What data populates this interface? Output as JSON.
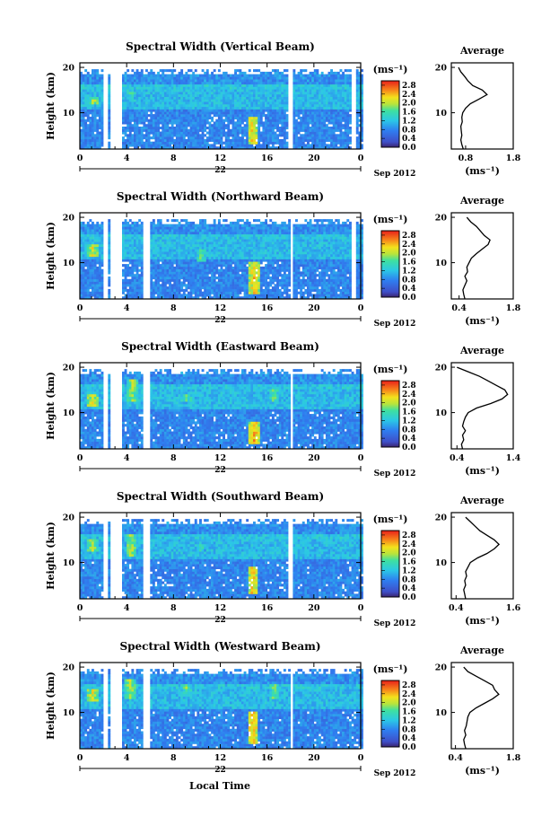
{
  "chart_data": [
    {
      "type": "heatmap",
      "title": "Spectral Width (Vertical Beam)",
      "ylabel": "Height (km)",
      "y_ticks": [
        "10",
        "20"
      ],
      "x_ticks": [
        "0",
        "4",
        "8",
        "12",
        "16",
        "20",
        "0"
      ],
      "xlim": [
        0,
        24
      ],
      "ylim": [
        2,
        21
      ],
      "date_day": "22",
      "date_month_year": "Sep 2012",
      "colorbar": {
        "unit_label": "(ms⁻¹)",
        "ticks": [
          "0.0",
          "0.4",
          "0.8",
          "1.2",
          "1.6",
          "2.0",
          "2.4",
          "2.8"
        ],
        "range": [
          0,
          3.0
        ]
      },
      "data_gaps_hours": [
        [
          1.8,
          2.2
        ],
        [
          2.6,
          3.1
        ],
        [
          3.2,
          3.6
        ],
        [
          17.6,
          18.1
        ],
        [
          23.0,
          23.4
        ]
      ],
      "features": [
        {
          "t": 14.7,
          "h": [
            3,
            9
          ],
          "w": 2.6
        },
        {
          "t": 1.1,
          "h": [
            11.5,
            13.5
          ],
          "w": 2.2
        },
        {
          "t": 4.3,
          "h": [
            12,
            15
          ],
          "w": 1.8
        }
      ],
      "average": {
        "title": "Average",
        "xlabel": "(ms⁻¹)",
        "x_ticks": [
          "0.8",
          "1.8"
        ],
        "xlim": [
          0.5,
          1.8
        ],
        "y_ticks": [
          "10",
          "20"
        ],
        "profile": [
          [
            2,
            0.75
          ],
          [
            3,
            0.72
          ],
          [
            4,
            0.7
          ],
          [
            5,
            0.72
          ],
          [
            6,
            0.71
          ],
          [
            7,
            0.7
          ],
          [
            8,
            0.73
          ],
          [
            9,
            0.72
          ],
          [
            10,
            0.74
          ],
          [
            11,
            0.8
          ],
          [
            12,
            0.9
          ],
          [
            13,
            1.08
          ],
          [
            14,
            1.25
          ],
          [
            15,
            1.15
          ],
          [
            16,
            0.95
          ],
          [
            17,
            0.85
          ],
          [
            18,
            0.78
          ],
          [
            19,
            0.7
          ],
          [
            20,
            0.65
          ]
        ]
      }
    },
    {
      "type": "heatmap",
      "title": "Spectral Width (Northward Beam)",
      "ylabel": "Height (km)",
      "y_ticks": [
        "10",
        "20"
      ],
      "x_ticks": [
        "0",
        "4",
        "8",
        "12",
        "16",
        "20",
        "0"
      ],
      "xlim": [
        0,
        24
      ],
      "ylim": [
        2,
        21
      ],
      "date_day": "22",
      "date_month_year": "Sep 2012",
      "colorbar": {
        "unit_label": "(ms⁻¹)",
        "ticks": [
          "0.0",
          "0.4",
          "0.8",
          "1.2",
          "1.6",
          "2.0",
          "2.4",
          "2.8"
        ],
        "range": [
          0,
          3.0
        ]
      },
      "data_gaps_hours": [
        [
          1.8,
          2.2
        ],
        [
          2.6,
          3.1
        ],
        [
          3.2,
          3.6
        ],
        [
          5.3,
          5.9
        ],
        [
          17.8,
          18.1
        ],
        [
          23.0,
          23.4
        ]
      ],
      "features": [
        {
          "t": 14.8,
          "h": [
            3,
            10
          ],
          "w": 2.6
        },
        {
          "t": 1.0,
          "h": [
            11,
            14
          ],
          "w": 2.4
        },
        {
          "t": 10.3,
          "h": [
            10,
            13
          ],
          "w": 2.0
        }
      ],
      "average": {
        "title": "Average",
        "xlabel": "(ms⁻¹)",
        "x_ticks": [
          "0.4",
          "1.8"
        ],
        "xlim": [
          0.2,
          1.8
        ],
        "y_ticks": [
          "10",
          "20"
        ],
        "profile": [
          [
            2,
            0.55
          ],
          [
            3,
            0.52
          ],
          [
            4,
            0.5
          ],
          [
            5,
            0.55
          ],
          [
            6,
            0.6
          ],
          [
            7,
            0.55
          ],
          [
            8,
            0.62
          ],
          [
            9,
            0.6
          ],
          [
            10,
            0.66
          ],
          [
            11,
            0.72
          ],
          [
            12,
            0.85
          ],
          [
            13,
            1.0
          ],
          [
            14,
            1.15
          ],
          [
            15,
            1.2
          ],
          [
            16,
            1.05
          ],
          [
            17,
            0.95
          ],
          [
            18,
            0.85
          ],
          [
            19,
            0.7
          ],
          [
            20,
            0.6
          ]
        ]
      }
    },
    {
      "type": "heatmap",
      "title": "Spectral Width (Eastward Beam)",
      "ylabel": "Height (km)",
      "y_ticks": [
        "10",
        "20"
      ],
      "x_ticks": [
        "0",
        "4",
        "8",
        "12",
        "16",
        "20",
        "0"
      ],
      "xlim": [
        0,
        24
      ],
      "ylim": [
        2,
        21
      ],
      "date_day": "22",
      "date_month_year": "Sep 2012",
      "colorbar": {
        "unit_label": "(ms⁻¹)",
        "ticks": [
          "0.0",
          "0.4",
          "0.8",
          "1.2",
          "1.6",
          "2.0",
          "2.4",
          "2.8"
        ],
        "range": [
          0,
          3.0
        ]
      },
      "data_gaps_hours": [
        [
          1.8,
          2.2
        ],
        [
          2.6,
          3.1
        ],
        [
          3.2,
          3.6
        ],
        [
          5.4,
          5.9
        ],
        [
          17.8,
          18.1
        ]
      ],
      "features": [
        {
          "t": 14.8,
          "h": [
            3,
            8
          ],
          "w": 2.7
        },
        {
          "t": 1.0,
          "h": [
            11,
            14
          ],
          "w": 2.4
        },
        {
          "t": 4.4,
          "h": [
            12,
            17
          ],
          "w": 2.2
        },
        {
          "t": 9.0,
          "h": [
            12,
            14
          ],
          "w": 2.0
        },
        {
          "t": 16.5,
          "h": [
            12,
            15
          ],
          "w": 2.0
        }
      ],
      "average": {
        "title": "Average",
        "xlabel": "(ms⁻¹)",
        "x_ticks": [
          "0.4",
          "1.4"
        ],
        "xlim": [
          0.3,
          1.4
        ],
        "y_ticks": [
          "10",
          "20"
        ],
        "profile": [
          [
            2,
            0.5
          ],
          [
            3,
            0.48
          ],
          [
            4,
            0.52
          ],
          [
            5,
            0.5
          ],
          [
            6,
            0.55
          ],
          [
            7,
            0.5
          ],
          [
            8,
            0.52
          ],
          [
            9,
            0.55
          ],
          [
            10,
            0.6
          ],
          [
            11,
            0.75
          ],
          [
            12,
            1.0
          ],
          [
            13,
            1.2
          ],
          [
            14,
            1.3
          ],
          [
            15,
            1.25
          ],
          [
            16,
            1.1
          ],
          [
            17,
            0.95
          ],
          [
            18,
            0.8
          ],
          [
            19,
            0.6
          ],
          [
            20,
            0.4
          ]
        ]
      }
    },
    {
      "type": "heatmap",
      "title": "Spectral Width (Southward Beam)",
      "ylabel": "Height (km)",
      "y_ticks": [
        "10",
        "20"
      ],
      "x_ticks": [
        "0",
        "4",
        "8",
        "12",
        "16",
        "20",
        "0"
      ],
      "xlim": [
        0,
        24
      ],
      "ylim": [
        2,
        21
      ],
      "date_day": "22",
      "date_month_year": "Sep 2012",
      "colorbar": {
        "unit_label": "(ms⁻¹)",
        "ticks": [
          "0.0",
          "0.4",
          "0.8",
          "1.2",
          "1.6",
          "2.0",
          "2.4",
          "2.8"
        ],
        "range": [
          0,
          3.0
        ]
      },
      "data_gaps_hours": [
        [
          1.8,
          2.2
        ],
        [
          2.6,
          3.1
        ],
        [
          3.2,
          3.6
        ],
        [
          5.4,
          5.9
        ],
        [
          17.7,
          18.1
        ]
      ],
      "features": [
        {
          "t": 14.7,
          "h": [
            3,
            9
          ],
          "w": 2.6
        },
        {
          "t": 1.0,
          "h": [
            12,
            15
          ],
          "w": 2.2
        },
        {
          "t": 4.3,
          "h": [
            11,
            16
          ],
          "w": 2.2
        },
        {
          "t": 10.2,
          "h": [
            12,
            14
          ],
          "w": 1.8
        }
      ],
      "average": {
        "title": "Average",
        "xlabel": "(ms⁻¹)",
        "x_ticks": [
          "0.4",
          "1.6"
        ],
        "xlim": [
          0.3,
          1.6
        ],
        "y_ticks": [
          "10",
          "20"
        ],
        "profile": [
          [
            2,
            0.6
          ],
          [
            3,
            0.58
          ],
          [
            4,
            0.56
          ],
          [
            5,
            0.6
          ],
          [
            6,
            0.58
          ],
          [
            7,
            0.62
          ],
          [
            8,
            0.6
          ],
          [
            9,
            0.65
          ],
          [
            10,
            0.7
          ],
          [
            11,
            0.85
          ],
          [
            12,
            1.05
          ],
          [
            13,
            1.2
          ],
          [
            14,
            1.3
          ],
          [
            15,
            1.2
          ],
          [
            16,
            1.05
          ],
          [
            17,
            0.9
          ],
          [
            18,
            0.8
          ],
          [
            19,
            0.7
          ],
          [
            20,
            0.6
          ]
        ]
      }
    },
    {
      "type": "heatmap",
      "title": "Spectral Width (Westward Beam)",
      "ylabel": "Height (km)",
      "y_ticks": [
        "10",
        "20"
      ],
      "x_ticks": [
        "0",
        "4",
        "8",
        "12",
        "16",
        "20",
        "0"
      ],
      "xlim": [
        0,
        24
      ],
      "ylim": [
        2,
        21
      ],
      "date_day": "22",
      "date_month_year": "Sep 2012",
      "colorbar": {
        "unit_label": "(ms⁻¹)",
        "ticks": [
          "0.0",
          "0.4",
          "0.8",
          "1.2",
          "1.6",
          "2.0",
          "2.4",
          "2.8"
        ],
        "range": [
          0,
          3.0
        ]
      },
      "data_gaps_hours": [
        [
          1.8,
          2.2
        ],
        [
          2.6,
          3.1
        ],
        [
          3.2,
          3.6
        ],
        [
          5.4,
          5.9
        ],
        [
          17.8,
          18.1
        ]
      ],
      "features": [
        {
          "t": 14.7,
          "h": [
            3,
            10
          ],
          "w": 2.7
        },
        {
          "t": 1.0,
          "h": [
            12,
            15
          ],
          "w": 2.4
        },
        {
          "t": 4.2,
          "h": [
            13,
            17
          ],
          "w": 2.2
        },
        {
          "t": 9.0,
          "h": [
            14,
            16
          ],
          "w": 2.0
        },
        {
          "t": 16.5,
          "h": [
            13,
            16
          ],
          "w": 2.0
        }
      ],
      "average": {
        "title": "Average",
        "xlabel": "(ms⁻¹)",
        "x_ticks": [
          "0.4",
          "1.8"
        ],
        "xlim": [
          0.3,
          1.8
        ],
        "y_ticks": [
          "10",
          "20"
        ],
        "profile": [
          [
            2,
            0.65
          ],
          [
            3,
            0.62
          ],
          [
            4,
            0.6
          ],
          [
            5,
            0.65
          ],
          [
            6,
            0.62
          ],
          [
            7,
            0.66
          ],
          [
            8,
            0.68
          ],
          [
            9,
            0.7
          ],
          [
            10,
            0.75
          ],
          [
            11,
            0.9
          ],
          [
            12,
            1.1
          ],
          [
            13,
            1.3
          ],
          [
            14,
            1.45
          ],
          [
            15,
            1.35
          ],
          [
            16,
            1.3
          ],
          [
            17,
            1.1
          ],
          [
            18,
            0.9
          ],
          [
            19,
            0.7
          ],
          [
            20,
            0.6
          ]
        ]
      }
    }
  ],
  "figure": {
    "xlabel": "Local Time"
  }
}
